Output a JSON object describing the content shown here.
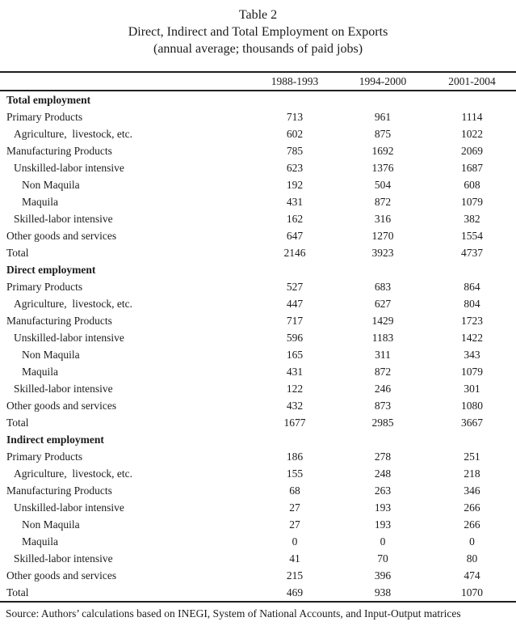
{
  "title": {
    "line1": "Table 2",
    "line2": "Direct, Indirect and Total Employment on Exports",
    "line3": "(annual average; thousands of paid jobs)"
  },
  "columns": [
    "1988-1993",
    "1994-2000",
    "2001-2004"
  ],
  "rows": [
    {
      "label": "Total employment",
      "type": "section",
      "indent": 0,
      "values": [
        "",
        "",
        ""
      ]
    },
    {
      "label": "Primary Products",
      "type": "data",
      "indent": 0,
      "values": [
        "713",
        "961",
        "1114"
      ]
    },
    {
      "label": "Agriculture,  livestock, etc.",
      "type": "data",
      "indent": 1,
      "values": [
        "602",
        "875",
        "1022"
      ]
    },
    {
      "label": "Manufacturing Products",
      "type": "data",
      "indent": 0,
      "values": [
        "785",
        "1692",
        "2069"
      ]
    },
    {
      "label": "Unskilled-labor intensive",
      "type": "data",
      "indent": 1,
      "values": [
        "623",
        "1376",
        "1687"
      ]
    },
    {
      "label": "Non Maquila",
      "type": "data",
      "indent": 2,
      "values": [
        "192",
        "504",
        "608"
      ]
    },
    {
      "label": "Maquila",
      "type": "data",
      "indent": 2,
      "values": [
        "431",
        "872",
        "1079"
      ]
    },
    {
      "label": "Skilled-labor intensive",
      "type": "data",
      "indent": 1,
      "values": [
        "162",
        "316",
        "382"
      ]
    },
    {
      "label": "Other goods and services",
      "type": "data",
      "indent": 0,
      "values": [
        "647",
        "1270",
        "1554"
      ]
    },
    {
      "label": "Total",
      "type": "data",
      "indent": 0,
      "values": [
        "2146",
        "3923",
        "4737"
      ]
    },
    {
      "label": "Direct employment",
      "type": "section",
      "indent": 0,
      "values": [
        "",
        "",
        ""
      ]
    },
    {
      "label": "Primary Products",
      "type": "data",
      "indent": 0,
      "values": [
        "527",
        "683",
        "864"
      ]
    },
    {
      "label": "Agriculture,  livestock, etc.",
      "type": "data",
      "indent": 1,
      "values": [
        "447",
        "627",
        "804"
      ]
    },
    {
      "label": "Manufacturing Products",
      "type": "data",
      "indent": 0,
      "values": [
        "717",
        "1429",
        "1723"
      ]
    },
    {
      "label": "Unskilled-labor intensive",
      "type": "data",
      "indent": 1,
      "values": [
        "596",
        "1183",
        "1422"
      ]
    },
    {
      "label": "Non Maquila",
      "type": "data",
      "indent": 2,
      "values": [
        "165",
        "311",
        "343"
      ]
    },
    {
      "label": "Maquila",
      "type": "data",
      "indent": 2,
      "values": [
        "431",
        "872",
        "1079"
      ]
    },
    {
      "label": "Skilled-labor intensive",
      "type": "data",
      "indent": 1,
      "values": [
        "122",
        "246",
        "301"
      ]
    },
    {
      "label": "Other goods and services",
      "type": "data",
      "indent": 0,
      "values": [
        "432",
        "873",
        "1080"
      ]
    },
    {
      "label": "Total",
      "type": "data",
      "indent": 0,
      "values": [
        "1677",
        "2985",
        "3667"
      ]
    },
    {
      "label": "Indirect employment",
      "type": "section",
      "indent": 0,
      "values": [
        "",
        "",
        ""
      ]
    },
    {
      "label": "Primary Products",
      "type": "data",
      "indent": 0,
      "values": [
        "186",
        "278",
        "251"
      ]
    },
    {
      "label": "Agriculture,  livestock, etc.",
      "type": "data",
      "indent": 1,
      "values": [
        "155",
        "248",
        "218"
      ]
    },
    {
      "label": "Manufacturing Products",
      "type": "data",
      "indent": 0,
      "values": [
        "68",
        "263",
        "346"
      ]
    },
    {
      "label": "Unskilled-labor intensive",
      "type": "data",
      "indent": 1,
      "values": [
        "27",
        "193",
        "266"
      ]
    },
    {
      "label": "Non Maquila",
      "type": "data",
      "indent": 2,
      "values": [
        "27",
        "193",
        "266"
      ]
    },
    {
      "label": "Maquila",
      "type": "data",
      "indent": 2,
      "values": [
        "0",
        "0",
        "0"
      ]
    },
    {
      "label": "Skilled-labor intensive",
      "type": "data",
      "indent": 1,
      "values": [
        "41",
        "70",
        "80"
      ]
    },
    {
      "label": "Other goods and services",
      "type": "data",
      "indent": 0,
      "values": [
        "215",
        "396",
        "474"
      ]
    },
    {
      "label": "Total",
      "type": "data",
      "indent": 0,
      "values": [
        "469",
        "938",
        "1070"
      ]
    }
  ],
  "source": "Source: Authors’ calculations based on INEGI, System of National Accounts, and Input-Output matrices"
}
